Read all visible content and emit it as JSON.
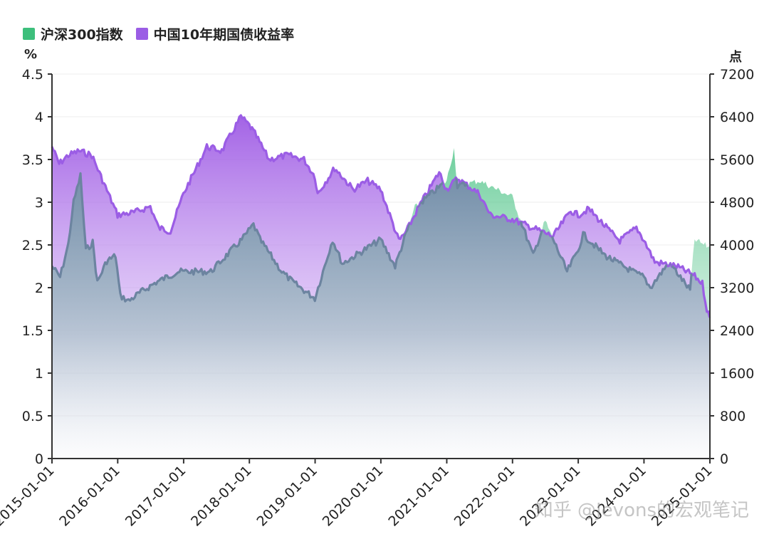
{
  "legend": [
    {
      "label": "沪深300指数",
      "color": "#3dbf7c"
    },
    {
      "label": "中国10年期国债收益率",
      "color": "#9b5de5"
    }
  ],
  "watermark": "知乎 @Jevons的宏观笔记",
  "chart_data": {
    "type": "area",
    "x_ticks": [
      "2015-01-01",
      "2016-01-01",
      "2017-01-01",
      "2018-01-01",
      "2019-01-01",
      "2020-01-01",
      "2021-01-01",
      "2022-01-01",
      "2023-01-01",
      "2024-01-01",
      "2025-01-01"
    ],
    "y_left": {
      "label": "%",
      "min": 0,
      "max": 4.5,
      "ticks": [
        "0",
        "0.5",
        "1",
        "1.5",
        "2",
        "2.5",
        "3",
        "3.5",
        "4",
        "4.5"
      ]
    },
    "y_right": {
      "label": "点",
      "min": 0,
      "max": 7200,
      "ticks": [
        "0",
        "800",
        "1600",
        "2400",
        "3200",
        "4000",
        "4800",
        "5600",
        "6400",
        "7200"
      ]
    },
    "grid": true,
    "legend_position": "top-left",
    "series": [
      {
        "name": "沪深300指数",
        "axis": "right",
        "color": "#3dbf7c",
        "points": [
          [
            "2015-01-01",
            3600
          ],
          [
            "2015-02-15",
            3400
          ],
          [
            "2015-04-01",
            4000
          ],
          [
            "2015-05-01",
            4800
          ],
          [
            "2015-06-08",
            5300
          ],
          [
            "2015-07-08",
            3900
          ],
          [
            "2015-08-15",
            4050
          ],
          [
            "2015-09-10",
            3300
          ],
          [
            "2015-11-01",
            3700
          ],
          [
            "2015-12-20",
            3800
          ],
          [
            "2016-01-15",
            3050
          ],
          [
            "2016-03-01",
            2950
          ],
          [
            "2016-05-01",
            3100
          ],
          [
            "2016-08-01",
            3300
          ],
          [
            "2016-11-30",
            3500
          ],
          [
            "2017-06-01",
            3500
          ],
          [
            "2017-11-20",
            4100
          ],
          [
            "2018-01-24",
            4380
          ],
          [
            "2018-03-01",
            4100
          ],
          [
            "2018-06-30",
            3500
          ],
          [
            "2018-09-01",
            3300
          ],
          [
            "2018-12-31",
            3000
          ],
          [
            "2019-04-08",
            4100
          ],
          [
            "2019-06-01",
            3650
          ],
          [
            "2019-12-31",
            4100
          ],
          [
            "2020-03-20",
            3600
          ],
          [
            "2020-07-08",
            4700
          ],
          [
            "2020-12-31",
            5200
          ],
          [
            "2021-02-10",
            5800
          ],
          [
            "2021-03-01",
            5100
          ],
          [
            "2021-06-30",
            5200
          ],
          [
            "2021-12-31",
            4900
          ],
          [
            "2022-04-26",
            3800
          ],
          [
            "2022-07-01",
            4450
          ],
          [
            "2022-10-31",
            3500
          ],
          [
            "2022-12-31",
            3900
          ],
          [
            "2023-01-28",
            4200
          ],
          [
            "2023-05-31",
            3800
          ],
          [
            "2023-10-31",
            3500
          ],
          [
            "2023-12-31",
            3400
          ],
          [
            "2024-02-05",
            3200
          ],
          [
            "2024-05-20",
            3680
          ],
          [
            "2024-09-13",
            3150
          ],
          [
            "2024-10-08",
            4100
          ],
          [
            "2024-12-31",
            3950
          ]
        ]
      },
      {
        "name": "中国10年期国债收益率",
        "axis": "left",
        "color": "#9b5de5",
        "points": [
          [
            "2015-01-01",
            3.65
          ],
          [
            "2015-02-10",
            3.45
          ],
          [
            "2015-04-01",
            3.55
          ],
          [
            "2015-06-01",
            3.6
          ],
          [
            "2015-08-10",
            3.55
          ],
          [
            "2015-09-30",
            3.3
          ],
          [
            "2015-12-31",
            2.85
          ],
          [
            "2016-04-01",
            2.88
          ],
          [
            "2016-06-30",
            2.95
          ],
          [
            "2016-08-15",
            2.7
          ],
          [
            "2016-10-20",
            2.66
          ],
          [
            "2016-12-31",
            3.1
          ],
          [
            "2017-03-01",
            3.35
          ],
          [
            "2017-05-10",
            3.65
          ],
          [
            "2017-08-01",
            3.6
          ],
          [
            "2017-11-15",
            4.0
          ],
          [
            "2017-12-31",
            3.9
          ],
          [
            "2018-02-01",
            3.8
          ],
          [
            "2018-04-20",
            3.5
          ],
          [
            "2018-08-01",
            3.55
          ],
          [
            "2018-10-31",
            3.5
          ],
          [
            "2018-12-31",
            3.3
          ],
          [
            "2019-01-15",
            3.1
          ],
          [
            "2019-04-20",
            3.4
          ],
          [
            "2019-07-31",
            3.15
          ],
          [
            "2019-10-20",
            3.25
          ],
          [
            "2019-12-31",
            3.15
          ],
          [
            "2020-04-10",
            2.55
          ],
          [
            "2020-05-20",
            2.65
          ],
          [
            "2020-07-31",
            2.95
          ],
          [
            "2020-11-20",
            3.35
          ],
          [
            "2020-12-31",
            3.15
          ],
          [
            "2021-03-01",
            3.28
          ],
          [
            "2021-06-30",
            3.1
          ],
          [
            "2021-08-31",
            2.85
          ],
          [
            "2021-12-31",
            2.8
          ],
          [
            "2022-08-15",
            2.6
          ],
          [
            "2022-11-20",
            2.9
          ],
          [
            "2022-12-31",
            2.85
          ],
          [
            "2023-03-01",
            2.92
          ],
          [
            "2023-06-30",
            2.65
          ],
          [
            "2023-08-20",
            2.55
          ],
          [
            "2023-11-20",
            2.7
          ],
          [
            "2023-12-31",
            2.56
          ],
          [
            "2024-03-01",
            2.3
          ],
          [
            "2024-06-30",
            2.25
          ],
          [
            "2024-09-30",
            2.15
          ],
          [
            "2024-11-20",
            2.05
          ],
          [
            "2024-12-15",
            1.75
          ],
          [
            "2024-12-31",
            1.65
          ]
        ]
      }
    ]
  }
}
